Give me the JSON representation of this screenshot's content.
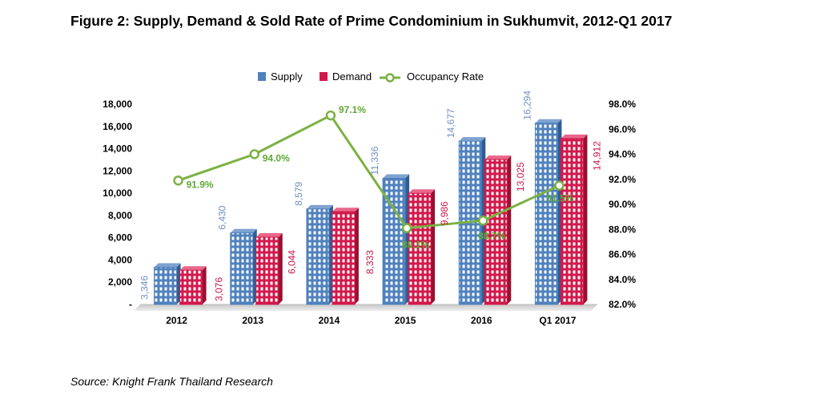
{
  "figure": {
    "title": "Figure 2: Supply, Demand & Sold Rate of Prime Condominium in Sukhumvit, 2012-Q1 2017",
    "source": "Source: Knight Frank Thailand Research"
  },
  "colors": {
    "supply": "#4f81bd",
    "demand": "#d2194b",
    "occupancy": "#7bb142",
    "supply_label": "#6f8fbf",
    "demand_label": "#c8174a"
  },
  "chart_data": {
    "type": "bar",
    "categories": [
      "2012",
      "2013",
      "2014",
      "2015",
      "2016",
      "Q1 2017"
    ],
    "series": [
      {
        "name": "Supply",
        "type": "bar",
        "axis": "left",
        "values": [
          3346,
          6430,
          8579,
          11336,
          14677,
          16294
        ],
        "labels": [
          "3,346",
          "6,430",
          "8,579",
          "11,336",
          "14,677",
          "16,294"
        ]
      },
      {
        "name": "Demand",
        "type": "bar",
        "axis": "left",
        "values": [
          3076,
          6044,
          8333,
          9986,
          13025,
          14912
        ],
        "labels": [
          "3,076",
          "6,044",
          "8,333",
          "9,986",
          "13,025",
          "14,912"
        ]
      },
      {
        "name": "Occupancy Rate",
        "type": "line",
        "axis": "right",
        "values": [
          91.9,
          94.0,
          97.1,
          88.1,
          88.7,
          91.5
        ],
        "labels": [
          "91.9%",
          "94.0%",
          "97.1%",
          "88.1%",
          "88.7%",
          "91.5%"
        ]
      }
    ],
    "y_left": {
      "lim": [
        0,
        18000
      ],
      "ticks": [
        0,
        2000,
        4000,
        6000,
        8000,
        10000,
        12000,
        14000,
        16000,
        18000
      ],
      "tick_labels": [
        "-",
        "2,000",
        "4,000",
        "6,000",
        "8,000",
        "10,000",
        "12,000",
        "14,000",
        "16,000",
        "18,000"
      ]
    },
    "y_right": {
      "lim": [
        82,
        98
      ],
      "ticks": [
        82,
        84,
        86,
        88,
        90,
        92,
        94,
        96,
        98
      ],
      "tick_labels": [
        "82.0%",
        "84.0%",
        "86.0%",
        "88.0%",
        "90.0%",
        "92.0%",
        "94.0%",
        "96.0%",
        "98.0%"
      ]
    },
    "legend": {
      "position": "top-center",
      "items": [
        "Supply",
        "Demand",
        "Occupancy Rate"
      ]
    },
    "grid": false
  }
}
